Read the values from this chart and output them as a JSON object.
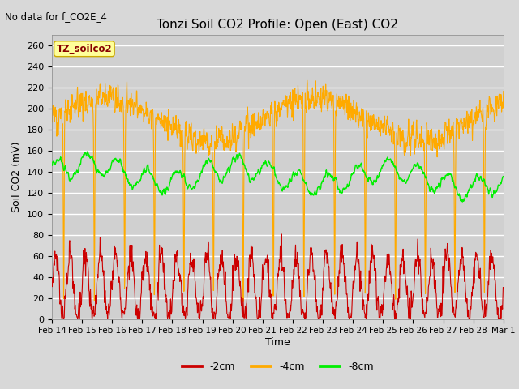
{
  "title": "Tonzi Soil CO2 Profile: Open (East) CO2",
  "subtitle": "No data for f_CO2E_4",
  "ylabel": "Soil CO2 (mV)",
  "xlabel": "Time",
  "legend_title": "TZ_soilco2",
  "ylim": [
    0,
    270
  ],
  "yticks": [
    0,
    20,
    40,
    60,
    80,
    100,
    120,
    140,
    160,
    180,
    200,
    220,
    240,
    260
  ],
  "line_colors": {
    "neg2cm": "#cc0000",
    "neg4cm": "#ffaa00",
    "neg8cm": "#00ee00"
  },
  "legend_labels": [
    "-2cm",
    "-4cm",
    "-8cm"
  ],
  "bg_color": "#e0e0e0",
  "plot_bg_color": "#d8d8d8",
  "grid_color": "#ffffff",
  "legend_box_color": "#ffff99",
  "legend_box_edge": "#ccaa00"
}
